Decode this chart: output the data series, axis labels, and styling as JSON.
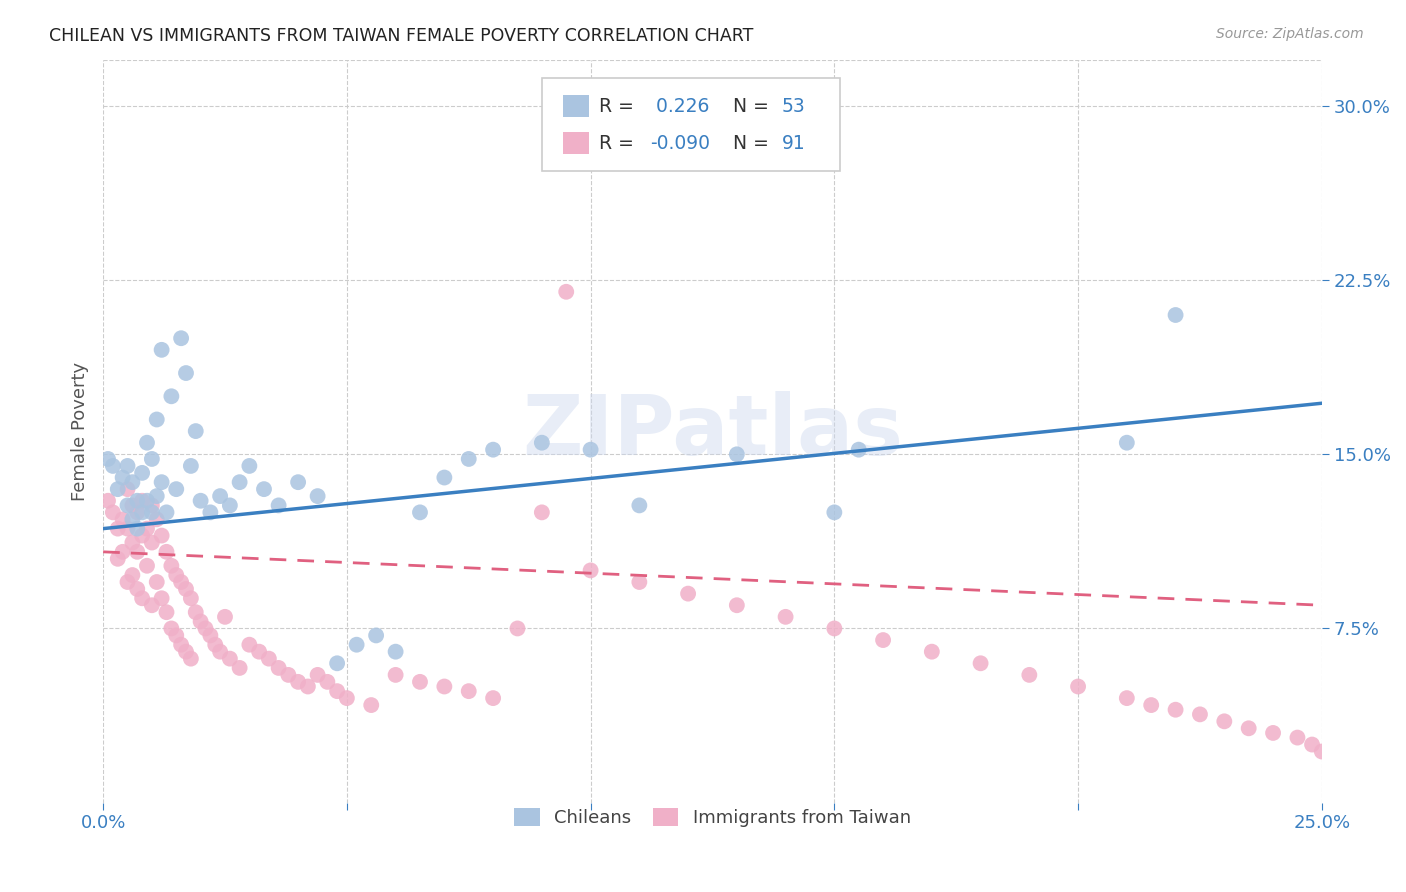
{
  "title": "CHILEAN VS IMMIGRANTS FROM TAIWAN FEMALE POVERTY CORRELATION CHART",
  "source": "Source: ZipAtlas.com",
  "ylabel": "Female Poverty",
  "yticks": [
    "7.5%",
    "15.0%",
    "22.5%",
    "30.0%"
  ],
  "ytick_vals": [
    0.075,
    0.15,
    0.225,
    0.3
  ],
  "xlim": [
    0.0,
    0.25
  ],
  "ylim": [
    0.0,
    0.32
  ],
  "chilean_color": "#aac4e0",
  "chilean_color_line": "#3a7fc1",
  "taiwan_color": "#f0b0c8",
  "taiwan_color_line": "#e06080",
  "R_chilean": 0.226,
  "N_chilean": 53,
  "R_taiwan": -0.09,
  "N_taiwan": 91,
  "legend_label_chilean": "Chileans",
  "legend_label_taiwan": "Immigrants from Taiwan",
  "watermark": "ZIPatlas",
  "ch_line_x": [
    0.0,
    0.25
  ],
  "ch_line_y": [
    0.118,
    0.172
  ],
  "tw_line_x": [
    0.0,
    0.25
  ],
  "tw_line_y": [
    0.108,
    0.085
  ],
  "chilean_x": [
    0.001,
    0.002,
    0.003,
    0.004,
    0.005,
    0.005,
    0.006,
    0.006,
    0.007,
    0.007,
    0.008,
    0.008,
    0.009,
    0.009,
    0.01,
    0.01,
    0.011,
    0.011,
    0.012,
    0.012,
    0.013,
    0.014,
    0.015,
    0.016,
    0.017,
    0.018,
    0.019,
    0.02,
    0.022,
    0.024,
    0.026,
    0.028,
    0.03,
    0.033,
    0.036,
    0.04,
    0.044,
    0.048,
    0.052,
    0.056,
    0.06,
    0.065,
    0.07,
    0.075,
    0.08,
    0.09,
    0.1,
    0.11,
    0.13,
    0.15,
    0.155,
    0.21,
    0.22
  ],
  "chilean_y": [
    0.148,
    0.145,
    0.135,
    0.14,
    0.128,
    0.145,
    0.122,
    0.138,
    0.13,
    0.118,
    0.125,
    0.142,
    0.13,
    0.155,
    0.125,
    0.148,
    0.132,
    0.165,
    0.138,
    0.195,
    0.125,
    0.175,
    0.135,
    0.2,
    0.185,
    0.145,
    0.16,
    0.13,
    0.125,
    0.132,
    0.128,
    0.138,
    0.145,
    0.135,
    0.128,
    0.138,
    0.132,
    0.06,
    0.068,
    0.072,
    0.065,
    0.125,
    0.14,
    0.148,
    0.152,
    0.155,
    0.152,
    0.128,
    0.15,
    0.125,
    0.152,
    0.155,
    0.21
  ],
  "taiwan_x": [
    0.001,
    0.002,
    0.003,
    0.003,
    0.004,
    0.004,
    0.005,
    0.005,
    0.005,
    0.006,
    0.006,
    0.006,
    0.007,
    0.007,
    0.007,
    0.008,
    0.008,
    0.008,
    0.009,
    0.009,
    0.01,
    0.01,
    0.01,
    0.011,
    0.011,
    0.012,
    0.012,
    0.013,
    0.013,
    0.014,
    0.014,
    0.015,
    0.015,
    0.016,
    0.016,
    0.017,
    0.017,
    0.018,
    0.018,
    0.019,
    0.02,
    0.021,
    0.022,
    0.023,
    0.024,
    0.025,
    0.026,
    0.028,
    0.03,
    0.032,
    0.034,
    0.036,
    0.038,
    0.04,
    0.042,
    0.044,
    0.046,
    0.048,
    0.05,
    0.055,
    0.06,
    0.065,
    0.07,
    0.075,
    0.08,
    0.085,
    0.09,
    0.095,
    0.1,
    0.11,
    0.12,
    0.13,
    0.14,
    0.15,
    0.16,
    0.17,
    0.18,
    0.19,
    0.2,
    0.21,
    0.215,
    0.22,
    0.225,
    0.23,
    0.235,
    0.24,
    0.245,
    0.248,
    0.25,
    0.252,
    0.255
  ],
  "taiwan_y": [
    0.13,
    0.125,
    0.118,
    0.105,
    0.122,
    0.108,
    0.135,
    0.118,
    0.095,
    0.128,
    0.112,
    0.098,
    0.125,
    0.108,
    0.092,
    0.13,
    0.115,
    0.088,
    0.118,
    0.102,
    0.128,
    0.112,
    0.085,
    0.122,
    0.095,
    0.115,
    0.088,
    0.108,
    0.082,
    0.102,
    0.075,
    0.098,
    0.072,
    0.095,
    0.068,
    0.092,
    0.065,
    0.088,
    0.062,
    0.082,
    0.078,
    0.075,
    0.072,
    0.068,
    0.065,
    0.08,
    0.062,
    0.058,
    0.068,
    0.065,
    0.062,
    0.058,
    0.055,
    0.052,
    0.05,
    0.055,
    0.052,
    0.048,
    0.045,
    0.042,
    0.055,
    0.052,
    0.05,
    0.048,
    0.045,
    0.075,
    0.125,
    0.22,
    0.1,
    0.095,
    0.09,
    0.085,
    0.08,
    0.075,
    0.07,
    0.065,
    0.06,
    0.055,
    0.05,
    0.045,
    0.042,
    0.04,
    0.038,
    0.035,
    0.032,
    0.03,
    0.028,
    0.025,
    0.022,
    0.02,
    0.018
  ]
}
